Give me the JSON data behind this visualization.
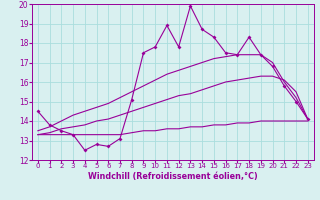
{
  "xlabel": "Windchill (Refroidissement éolien,°C)",
  "x": [
    0,
    1,
    2,
    3,
    4,
    5,
    6,
    7,
    8,
    9,
    10,
    11,
    12,
    13,
    14,
    15,
    16,
    17,
    18,
    19,
    20,
    21,
    22,
    23
  ],
  "y_jagged": [
    14.5,
    13.8,
    13.5,
    13.3,
    12.5,
    12.8,
    12.7,
    13.1,
    15.1,
    17.5,
    17.8,
    18.9,
    17.8,
    19.9,
    18.7,
    18.3,
    17.5,
    17.4,
    18.3,
    17.4,
    16.8,
    15.8,
    15.0,
    14.1
  ],
  "y_upper_diag": [
    13.5,
    13.7,
    14.0,
    14.3,
    14.5,
    14.7,
    14.9,
    15.2,
    15.5,
    15.8,
    16.1,
    16.4,
    16.6,
    16.8,
    17.0,
    17.2,
    17.3,
    17.4,
    17.4,
    17.4,
    17.0,
    16.0,
    15.2,
    14.1
  ],
  "y_lower_diag": [
    13.3,
    13.4,
    13.6,
    13.7,
    13.8,
    14.0,
    14.1,
    14.3,
    14.5,
    14.7,
    14.9,
    15.1,
    15.3,
    15.4,
    15.6,
    15.8,
    16.0,
    16.1,
    16.2,
    16.3,
    16.3,
    16.1,
    15.5,
    14.1
  ],
  "y_flat": [
    13.3,
    13.3,
    13.3,
    13.3,
    13.3,
    13.3,
    13.3,
    13.3,
    13.4,
    13.5,
    13.5,
    13.6,
    13.6,
    13.7,
    13.7,
    13.8,
    13.8,
    13.9,
    13.9,
    14.0,
    14.0,
    14.0,
    14.0,
    14.0
  ],
  "color": "#990099",
  "bg_color": "#d9f0f0",
  "grid_color": "#aadddd",
  "ylim": [
    12,
    20
  ],
  "yticks": [
    12,
    13,
    14,
    15,
    16,
    17,
    18,
    19,
    20
  ]
}
